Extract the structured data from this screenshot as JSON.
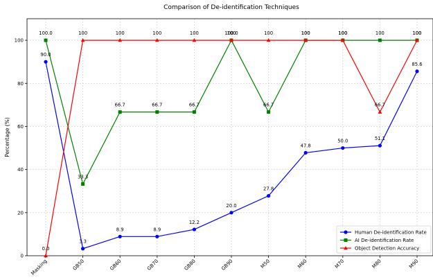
{
  "chart_data": {
    "type": "line",
    "title": "Comparison of De-identification Techniques",
    "xlabel": "",
    "ylabel": "Percentage (%)",
    "categories": [
      "Masking",
      "GB50",
      "GB60",
      "GB70",
      "GB80",
      "GB90",
      "M50",
      "M60",
      "M70",
      "M80",
      "M90"
    ],
    "ylim": [
      0,
      110
    ],
    "yticks": [
      0,
      20,
      40,
      60,
      80,
      100
    ],
    "grid": true,
    "legend_position": "lower-right",
    "series": [
      {
        "name": "Human De-identification Rate",
        "color": "#0000ff",
        "marker": "circle",
        "values": [
          90.0,
          3.3,
          8.9,
          8.9,
          12.2,
          20.0,
          27.8,
          47.8,
          50.0,
          51.1,
          85.6
        ],
        "labels": [
          "90.0",
          "3.3",
          "8.9",
          "8.9",
          "12.2",
          "20.0",
          "27.8",
          "47.8",
          "50.0",
          "51.1",
          "85.6"
        ]
      },
      {
        "name": "AI De-identification Rate",
        "color": "#008000",
        "marker": "square",
        "values": [
          100.0,
          33.3,
          66.7,
          66.7,
          66.7,
          100,
          66.7,
          100,
          100,
          100,
          100
        ],
        "labels": [
          "100.0",
          "33.3",
          "66.7",
          "66.7",
          "66.7",
          "100",
          "66.7",
          "100",
          "100",
          "100",
          "100"
        ]
      },
      {
        "name": "Object Detection Accuracy",
        "color": "#ff0000",
        "marker": "triangle",
        "values": [
          0.0,
          100,
          100,
          100,
          100,
          100,
          100,
          100,
          100,
          66.7,
          100
        ],
        "labels": [
          "0.0",
          "100",
          "100",
          "100",
          "100",
          "100.0",
          "100",
          "100",
          "100",
          "66.7",
          "100"
        ]
      }
    ]
  }
}
